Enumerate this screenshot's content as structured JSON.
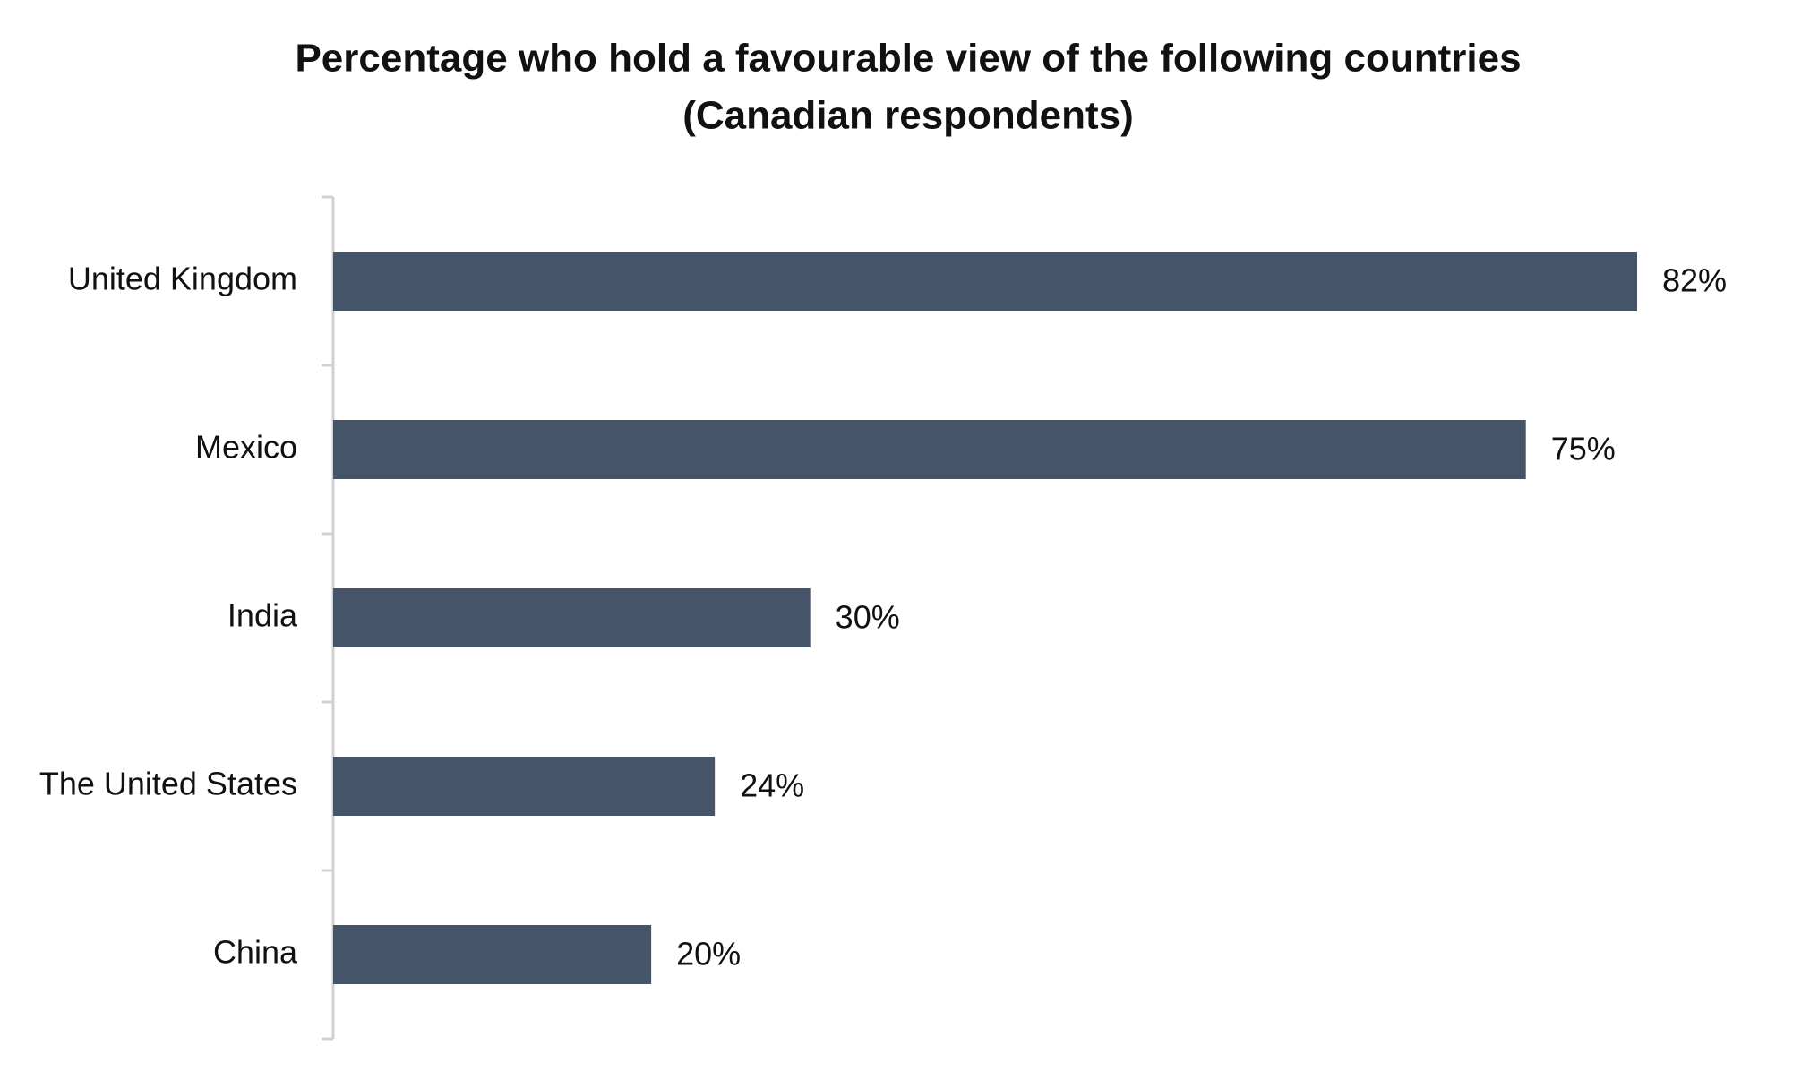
{
  "chart_data": {
    "type": "bar",
    "orientation": "horizontal",
    "title": "Percentage who hold a favourable view of the following countries",
    "subtitle": "(Canadian respondents)",
    "categories": [
      "United Kingdom",
      "Mexico",
      "India",
      "The United States",
      "China"
    ],
    "values": [
      82,
      75,
      30,
      24,
      20
    ],
    "value_labels": [
      "82%",
      "75%",
      "30%",
      "24%",
      "20%"
    ],
    "color": "#465469"
  }
}
